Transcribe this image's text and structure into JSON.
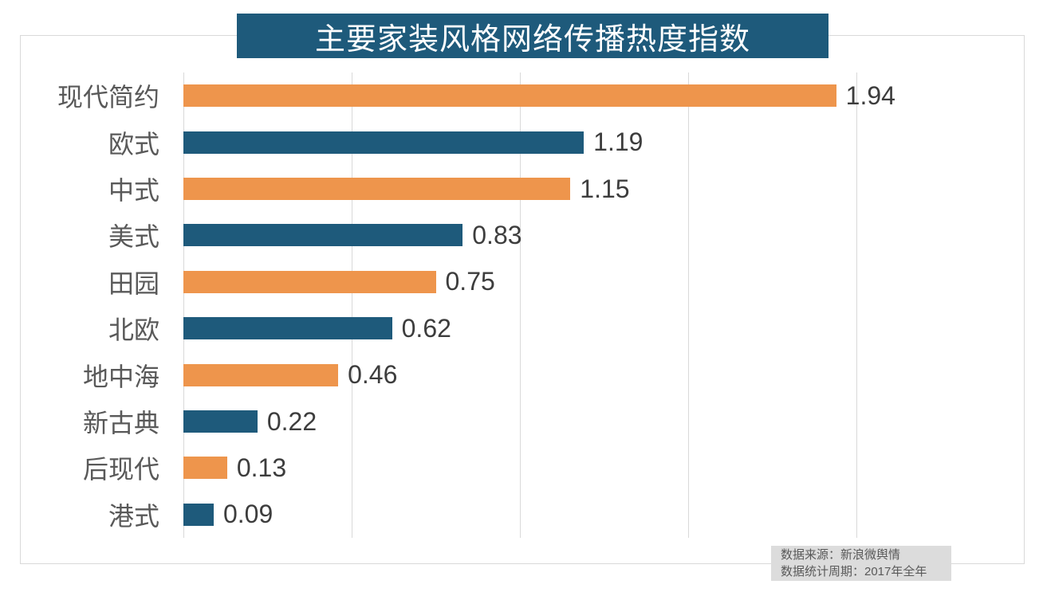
{
  "chart_data": {
    "type": "bar",
    "orientation": "horizontal",
    "title": "主要家装风格网络传播热度指数",
    "categories": [
      "现代简约",
      "欧式",
      "中式",
      "美式",
      "田园",
      "北欧",
      "地中海",
      "新古典",
      "后现代",
      "港式"
    ],
    "values": [
      1.94,
      1.19,
      1.15,
      0.83,
      0.75,
      0.62,
      0.46,
      0.22,
      0.13,
      0.09
    ],
    "value_labels": [
      "1.94",
      "1.19",
      "1.15",
      "0.83",
      "0.75",
      "0.62",
      "0.46",
      "0.22",
      "0.13",
      "0.09"
    ],
    "xlim": [
      0,
      2.5
    ],
    "gridline_interval": 0.5,
    "grid": true,
    "legend": "none",
    "bar_colors_alternating": [
      "#ee954c",
      "#1e5a7b"
    ]
  },
  "footer": {
    "source_line": "数据来源：新浪微舆情",
    "period_line": "数据统计周期：2017年全年"
  },
  "colors": {
    "title_bg": "#1e5a7b",
    "title_text": "#ffffff",
    "orange_bar": "#ee954c",
    "blue_bar": "#1e5a7b",
    "grid": "#d9d9d9",
    "border": "#d9d9d9",
    "category_text": "#595959",
    "value_text": "#3d3d3d",
    "footer_bg": "#dcdcdc",
    "footer_text": "#595959"
  }
}
